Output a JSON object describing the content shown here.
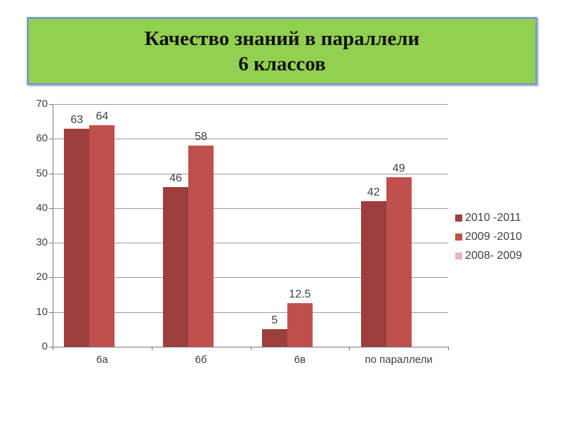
{
  "title": {
    "line1": "Качество знаний в параллели",
    "line2": "6 классов"
  },
  "colors": {
    "banner_fill": "#92D050",
    "banner_border": "#7C9EC4",
    "series1": "#9C3E3C",
    "series2": "#C0504D",
    "series3": "#E3B8B6",
    "gridline": "#9B9B9B",
    "axis": "#777777",
    "text": "#3F3F3F"
  },
  "chart_data": {
    "type": "bar",
    "title": "",
    "categories": [
      "6а",
      "6б",
      "6в",
      "по параллели"
    ],
    "series": [
      {
        "name": "2010 -2011",
        "color": "#9C3E3C",
        "values": [
          63,
          46,
          5,
          42
        ]
      },
      {
        "name": "2009 -2010",
        "color": "#C0504D",
        "values": [
          64,
          58,
          12.5,
          49
        ]
      },
      {
        "name": "2008- 2009",
        "color": "#E3B8B6",
        "values": []
      }
    ],
    "data_labels": [
      "63",
      "64",
      "46",
      "58",
      "5",
      "12.5",
      "42",
      "49"
    ],
    "xlabel": "",
    "ylabel": "",
    "ylim": [
      0,
      70
    ],
    "yticks": [
      0,
      10,
      20,
      30,
      40,
      50,
      60,
      70
    ],
    "grid": true,
    "legend_position": "right",
    "show_data_labels": true
  }
}
